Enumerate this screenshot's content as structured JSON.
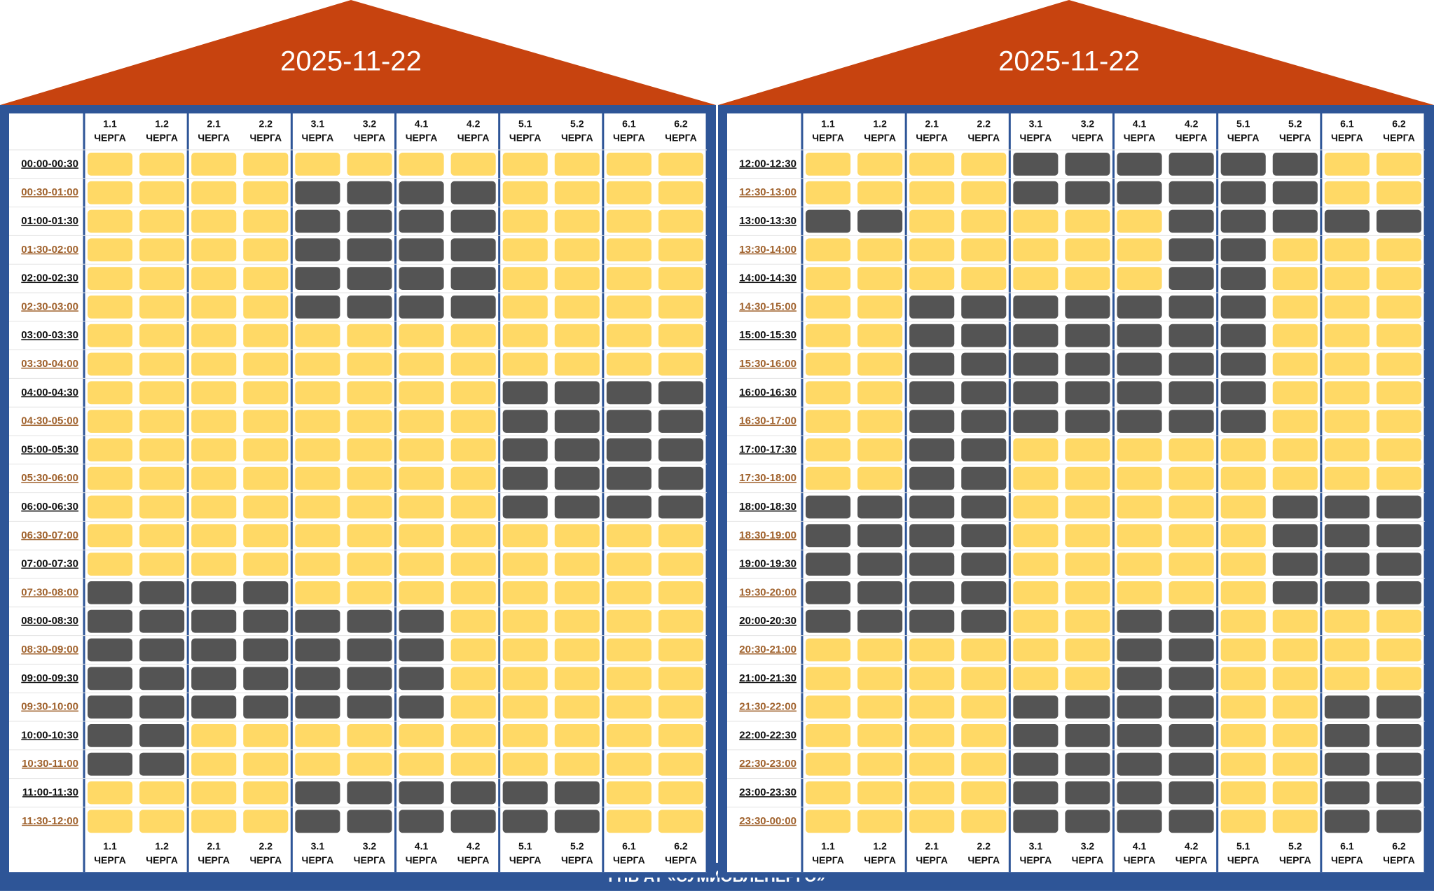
{
  "colors": {
    "on": "#ffd966",
    "off": "#545454"
  },
  "columns": [
    {
      "num": "1.1",
      "label": "ЧЕРГА"
    },
    {
      "num": "1.2",
      "label": "ЧЕРГА"
    },
    {
      "num": "2.1",
      "label": "ЧЕРГА"
    },
    {
      "num": "2.2",
      "label": "ЧЕРГА"
    },
    {
      "num": "3.1",
      "label": "ЧЕРГА"
    },
    {
      "num": "3.2",
      "label": "ЧЕРГА"
    },
    {
      "num": "4.1",
      "label": "ЧЕРГА"
    },
    {
      "num": "4.2",
      "label": "ЧЕРГА"
    },
    {
      "num": "5.1",
      "label": "ЧЕРГА"
    },
    {
      "num": "5.2",
      "label": "ЧЕРГА"
    },
    {
      "num": "6.1",
      "label": "ЧЕРГА"
    },
    {
      "num": "6.2",
      "label": "ЧЕРГА"
    }
  ],
  "panels": [
    {
      "date": "2025-11-22",
      "rows": [
        {
          "time": "00:00-00:30",
          "cells": [
            0,
            0,
            0,
            0,
            0,
            0,
            0,
            0,
            0,
            0,
            0,
            0
          ]
        },
        {
          "time": "00:30-01:00",
          "cells": [
            0,
            0,
            0,
            0,
            1,
            1,
            1,
            1,
            0,
            0,
            0,
            0
          ]
        },
        {
          "time": "01:00-01:30",
          "cells": [
            0,
            0,
            0,
            0,
            1,
            1,
            1,
            1,
            0,
            0,
            0,
            0
          ]
        },
        {
          "time": "01:30-02:00",
          "cells": [
            0,
            0,
            0,
            0,
            1,
            1,
            1,
            1,
            0,
            0,
            0,
            0
          ]
        },
        {
          "time": "02:00-02:30",
          "cells": [
            0,
            0,
            0,
            0,
            1,
            1,
            1,
            1,
            0,
            0,
            0,
            0
          ]
        },
        {
          "time": "02:30-03:00",
          "cells": [
            0,
            0,
            0,
            0,
            1,
            1,
            1,
            1,
            0,
            0,
            0,
            0
          ]
        },
        {
          "time": "03:00-03:30",
          "cells": [
            0,
            0,
            0,
            0,
            0,
            0,
            0,
            0,
            0,
            0,
            0,
            0
          ]
        },
        {
          "time": "03:30-04:00",
          "cells": [
            0,
            0,
            0,
            0,
            0,
            0,
            0,
            0,
            0,
            0,
            0,
            0
          ]
        },
        {
          "time": "04:00-04:30",
          "cells": [
            0,
            0,
            0,
            0,
            0,
            0,
            0,
            0,
            1,
            1,
            1,
            1
          ]
        },
        {
          "time": "04:30-05:00",
          "cells": [
            0,
            0,
            0,
            0,
            0,
            0,
            0,
            0,
            1,
            1,
            1,
            1
          ]
        },
        {
          "time": "05:00-05:30",
          "cells": [
            0,
            0,
            0,
            0,
            0,
            0,
            0,
            0,
            1,
            1,
            1,
            1
          ]
        },
        {
          "time": "05:30-06:00",
          "cells": [
            0,
            0,
            0,
            0,
            0,
            0,
            0,
            0,
            1,
            1,
            1,
            1
          ]
        },
        {
          "time": "06:00-06:30",
          "cells": [
            0,
            0,
            0,
            0,
            0,
            0,
            0,
            0,
            1,
            1,
            1,
            1
          ]
        },
        {
          "time": "06:30-07:00",
          "cells": [
            0,
            0,
            0,
            0,
            0,
            0,
            0,
            0,
            0,
            0,
            0,
            0
          ]
        },
        {
          "time": "07:00-07:30",
          "cells": [
            0,
            0,
            0,
            0,
            0,
            0,
            0,
            0,
            0,
            0,
            0,
            0
          ]
        },
        {
          "time": "07:30-08:00",
          "cells": [
            1,
            1,
            1,
            1,
            0,
            0,
            0,
            0,
            0,
            0,
            0,
            0
          ]
        },
        {
          "time": "08:00-08:30",
          "cells": [
            1,
            1,
            1,
            1,
            1,
            1,
            1,
            0,
            0,
            0,
            0,
            0
          ]
        },
        {
          "time": "08:30-09:00",
          "cells": [
            1,
            1,
            1,
            1,
            1,
            1,
            1,
            0,
            0,
            0,
            0,
            0
          ]
        },
        {
          "time": "09:00-09:30",
          "cells": [
            1,
            1,
            1,
            1,
            1,
            1,
            1,
            0,
            0,
            0,
            0,
            0
          ]
        },
        {
          "time": "09:30-10:00",
          "cells": [
            1,
            1,
            1,
            1,
            1,
            1,
            1,
            0,
            0,
            0,
            0,
            0
          ]
        },
        {
          "time": "10:00-10:30",
          "cells": [
            1,
            1,
            0,
            0,
            0,
            0,
            0,
            0,
            0,
            0,
            0,
            0
          ]
        },
        {
          "time": "10:30-11:00",
          "cells": [
            1,
            1,
            0,
            0,
            0,
            0,
            0,
            0,
            0,
            0,
            0,
            0
          ]
        },
        {
          "time": "11:00-11:30",
          "cells": [
            0,
            0,
            0,
            0,
            1,
            1,
            1,
            1,
            1,
            1,
            0,
            0
          ]
        },
        {
          "time": "11:30-12:00",
          "cells": [
            0,
            0,
            0,
            0,
            1,
            1,
            1,
            1,
            1,
            1,
            0,
            0
          ]
        }
      ]
    },
    {
      "date": "2025-11-22",
      "rows": [
        {
          "time": "12:00-12:30",
          "cells": [
            0,
            0,
            0,
            0,
            1,
            1,
            1,
            1,
            1,
            1,
            0,
            0
          ]
        },
        {
          "time": "12:30-13:00",
          "cells": [
            0,
            0,
            0,
            0,
            1,
            1,
            1,
            1,
            1,
            1,
            0,
            0
          ]
        },
        {
          "time": "13:00-13:30",
          "cells": [
            1,
            1,
            0,
            0,
            0,
            0,
            0,
            1,
            1,
            1,
            1,
            1
          ]
        },
        {
          "time": "13:30-14:00",
          "cells": [
            0,
            0,
            0,
            0,
            0,
            0,
            0,
            1,
            1,
            0,
            0,
            0
          ]
        },
        {
          "time": "14:00-14:30",
          "cells": [
            0,
            0,
            0,
            0,
            0,
            0,
            0,
            1,
            1,
            0,
            0,
            0
          ]
        },
        {
          "time": "14:30-15:00",
          "cells": [
            0,
            0,
            1,
            1,
            1,
            1,
            1,
            1,
            1,
            0,
            0,
            0
          ]
        },
        {
          "time": "15:00-15:30",
          "cells": [
            0,
            0,
            1,
            1,
            1,
            1,
            1,
            1,
            1,
            0,
            0,
            0
          ]
        },
        {
          "time": "15:30-16:00",
          "cells": [
            0,
            0,
            1,
            1,
            1,
            1,
            1,
            1,
            1,
            0,
            0,
            0
          ]
        },
        {
          "time": "16:00-16:30",
          "cells": [
            0,
            0,
            1,
            1,
            1,
            1,
            1,
            1,
            1,
            0,
            0,
            0
          ]
        },
        {
          "time": "16:30-17:00",
          "cells": [
            0,
            0,
            1,
            1,
            1,
            1,
            1,
            1,
            1,
            0,
            0,
            0
          ]
        },
        {
          "time": "17:00-17:30",
          "cells": [
            0,
            0,
            1,
            1,
            0,
            0,
            0,
            0,
            0,
            0,
            0,
            0
          ]
        },
        {
          "time": "17:30-18:00",
          "cells": [
            0,
            0,
            1,
            1,
            0,
            0,
            0,
            0,
            0,
            0,
            0,
            0
          ]
        },
        {
          "time": "18:00-18:30",
          "cells": [
            1,
            1,
            1,
            1,
            0,
            0,
            0,
            0,
            0,
            1,
            1,
            1
          ]
        },
        {
          "time": "18:30-19:00",
          "cells": [
            1,
            1,
            1,
            1,
            0,
            0,
            0,
            0,
            0,
            1,
            1,
            1
          ]
        },
        {
          "time": "19:00-19:30",
          "cells": [
            1,
            1,
            1,
            1,
            0,
            0,
            0,
            0,
            0,
            1,
            1,
            1
          ]
        },
        {
          "time": "19:30-20:00",
          "cells": [
            1,
            1,
            1,
            1,
            0,
            0,
            0,
            0,
            0,
            1,
            1,
            1
          ]
        },
        {
          "time": "20:00-20:30",
          "cells": [
            1,
            1,
            1,
            1,
            0,
            0,
            1,
            1,
            0,
            0,
            0,
            0
          ]
        },
        {
          "time": "20:30-21:00",
          "cells": [
            0,
            0,
            0,
            0,
            0,
            0,
            1,
            1,
            0,
            0,
            0,
            0
          ]
        },
        {
          "time": "21:00-21:30",
          "cells": [
            0,
            0,
            0,
            0,
            0,
            0,
            1,
            1,
            0,
            0,
            0,
            0
          ]
        },
        {
          "time": "21:30-22:00",
          "cells": [
            0,
            0,
            0,
            0,
            1,
            1,
            1,
            1,
            0,
            0,
            1,
            1
          ]
        },
        {
          "time": "22:00-22:30",
          "cells": [
            0,
            0,
            0,
            0,
            1,
            1,
            1,
            1,
            0,
            0,
            1,
            1
          ]
        },
        {
          "time": "22:30-23:00",
          "cells": [
            0,
            0,
            0,
            0,
            1,
            1,
            1,
            1,
            0,
            0,
            1,
            1
          ]
        },
        {
          "time": "23:00-23:30",
          "cells": [
            0,
            0,
            0,
            0,
            1,
            1,
            1,
            1,
            0,
            0,
            1,
            1
          ]
        },
        {
          "time": "23:30-00:00",
          "cells": [
            0,
            0,
            0,
            0,
            1,
            1,
            1,
            1,
            0,
            0,
            1,
            1
          ]
        }
      ]
    }
  ],
  "footer": "ГПВ АТ «СУМИОБЛЕНЕРГО»"
}
